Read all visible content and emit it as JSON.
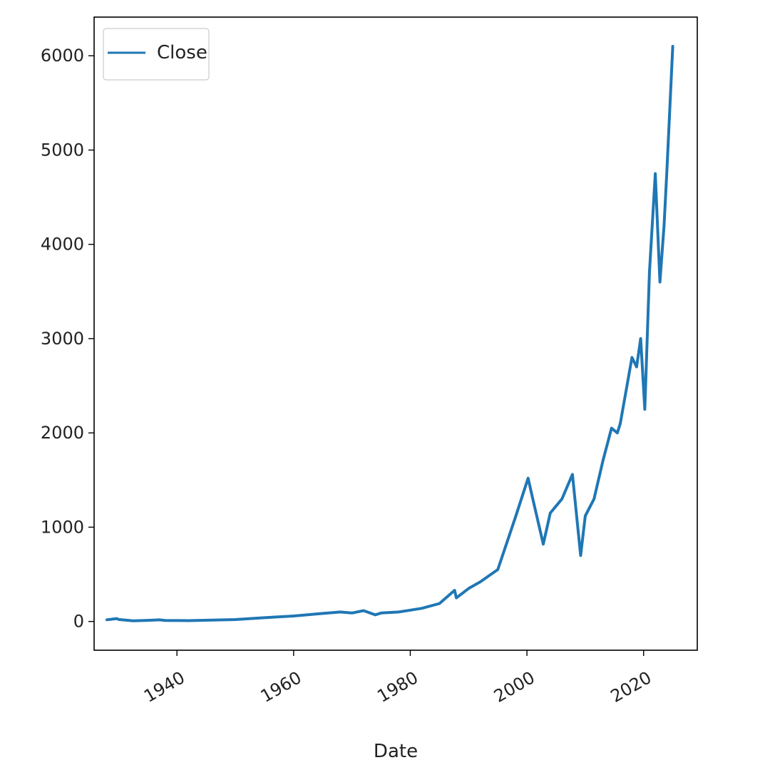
{
  "chart_data": {
    "type": "line",
    "title": "",
    "xlabel": "Date",
    "ylabel": "",
    "xlim": [
      1925.8,
      2029.2
    ],
    "ylim": [
      -305,
      6410
    ],
    "x_ticks": [
      1940,
      1960,
      1980,
      2000,
      2020
    ],
    "x_tick_labels": [
      "1940",
      "1960",
      "1980",
      "2000",
      "2020"
    ],
    "y_ticks": [
      0,
      1000,
      2000,
      3000,
      4000,
      5000,
      6000
    ],
    "y_tick_labels": [
      "0",
      "1000",
      "2000",
      "3000",
      "4000",
      "5000",
      "6000"
    ],
    "grid": false,
    "legend": {
      "position": "top-left",
      "entries": [
        "Close"
      ]
    },
    "series": [
      {
        "name": "Close",
        "color": "#1f77b4",
        "x": [
          1928,
          1929.7,
          1930,
          1932.5,
          1935,
          1937,
          1938,
          1942,
          1946,
          1950,
          1955,
          1960,
          1965,
          1968,
          1970,
          1972,
          1974,
          1975,
          1978,
          1980,
          1982,
          1985,
          1987.6,
          1987.9,
          1990,
          1992,
          1995,
          1998,
          2000.2,
          2001,
          2002.8,
          2004,
          2006,
          2007.8,
          2009.2,
          2010,
          2011.5,
          2013,
          2014.5,
          2015.5,
          2016,
          2018,
          2018.8,
          2019.5,
          2020.2,
          2021,
          2022,
          2022.8,
          2023.5,
          2024,
          2025
        ],
        "y": [
          18,
          31,
          21,
          7,
          12,
          17,
          11,
          9,
          15,
          20,
          40,
          58,
          85,
          100,
          90,
          115,
          70,
          90,
          100,
          120,
          140,
          190,
          330,
          250,
          350,
          420,
          550,
          1100,
          1520,
          1300,
          820,
          1150,
          1300,
          1560,
          700,
          1120,
          1300,
          1700,
          2050,
          2000,
          2100,
          2800,
          2700,
          3000,
          2250,
          3700,
          4750,
          3600,
          4200,
          4800,
          6100
        ]
      }
    ]
  }
}
